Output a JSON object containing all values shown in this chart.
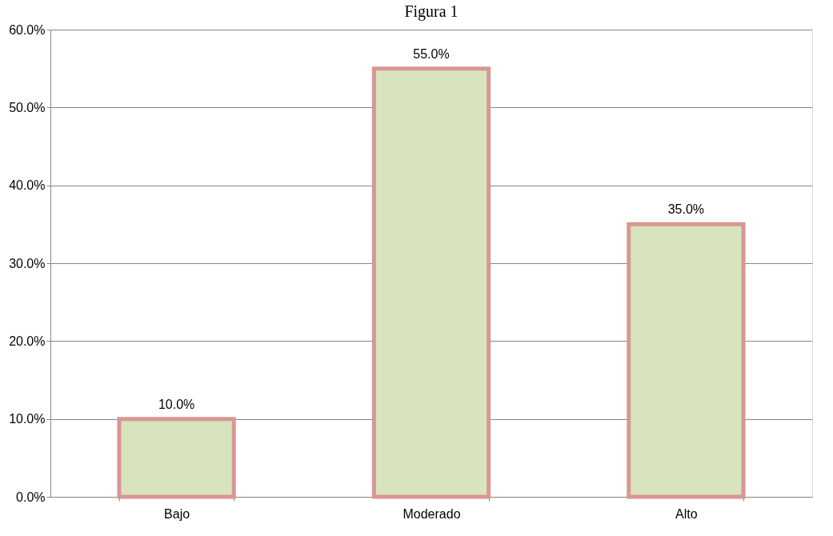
{
  "chart_data": {
    "type": "bar",
    "title": "Figura 1",
    "categories": [
      "Bajo",
      "Moderado",
      "Alto"
    ],
    "series": [
      {
        "color": "#d7e4bd",
        "values": [
          10,
          55,
          35
        ],
        "value_labels": [
          "10.0%",
          "55.0%",
          "35.0%"
        ]
      }
    ],
    "ylim": [
      0,
      60
    ],
    "yticks": [
      {
        "value": 0,
        "label": "0.0%"
      },
      {
        "value": 10,
        "label": "10.0%"
      },
      {
        "value": 20,
        "label": "20.0%"
      },
      {
        "value": 30,
        "label": "30.0%"
      },
      {
        "value": 40,
        "label": "40.0%"
      },
      {
        "value": 50,
        "label": "50.0%"
      },
      {
        "value": 60,
        "label": "60.0%"
      }
    ],
    "grid": "y"
  }
}
